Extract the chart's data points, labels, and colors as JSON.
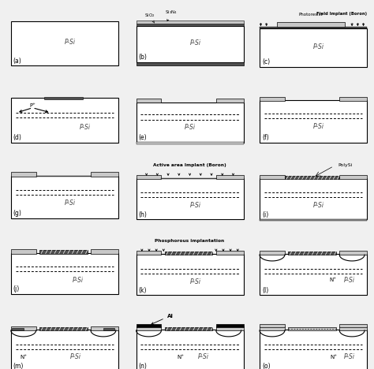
{
  "panel_labels": [
    "(a)",
    "(b)",
    "(c)",
    "(d)",
    "(e)",
    "(f)",
    "(g)",
    "(h)",
    "(i)",
    "(j)",
    "(k)",
    "(l)",
    "(m)",
    "(n)",
    "(o)"
  ],
  "bg_color": "#f5f5f5",
  "WHITE": "#ffffff",
  "LGRAY": "#c8c8c8",
  "DGRAY": "#505050",
  "BLACK": "#000000"
}
